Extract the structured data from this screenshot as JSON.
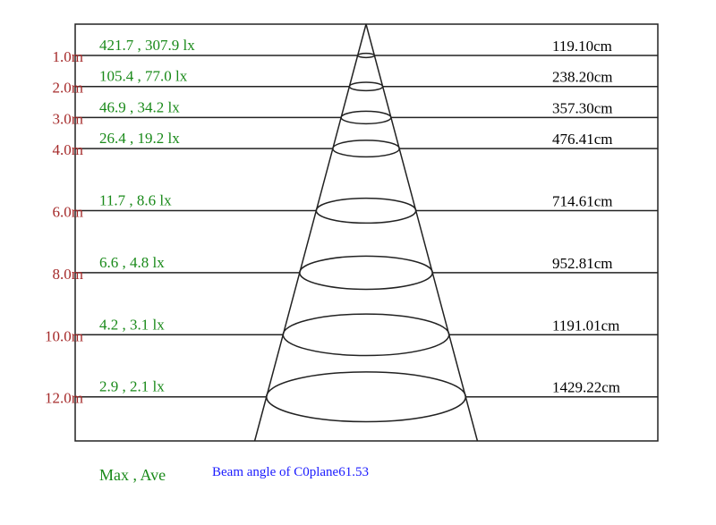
{
  "rows": [
    {
      "distance": "1.0m",
      "meters": 1,
      "lux": "421.7 , 307.9 lx",
      "diameter": "119.10cm"
    },
    {
      "distance": "2.0m",
      "meters": 2,
      "lux": "105.4 , 77.0 lx",
      "diameter": "238.20cm"
    },
    {
      "distance": "3.0m",
      "meters": 3,
      "lux": "46.9 , 34.2 lx",
      "diameter": "357.30cm"
    },
    {
      "distance": "4.0m",
      "meters": 4,
      "lux": "26.4 , 19.2 lx",
      "diameter": "476.41cm"
    },
    {
      "distance": "6.0m",
      "meters": 6,
      "lux": "11.7 , 8.6 lx",
      "diameter": "714.61cm"
    },
    {
      "distance": "8.0m",
      "meters": 8,
      "lux": "6.6 , 4.8 lx",
      "diameter": "952.81cm"
    },
    {
      "distance": "10.0m",
      "meters": 10,
      "lux": "4.2 , 3.1 lx",
      "diameter": "1191.01cm"
    },
    {
      "distance": "12.0m",
      "meters": 12,
      "lux": "2.9 , 2.1 lx",
      "diameter": "1429.22cm"
    }
  ],
  "legend": "Max , Ave",
  "beam_angle": "Beam angle of C0plane61.53",
  "colors": {
    "distance": "#a52a2a",
    "lux": "#1a8a1a",
    "diameter": "#000000",
    "beam": "#1a1aff",
    "lines": "#222222"
  }
}
